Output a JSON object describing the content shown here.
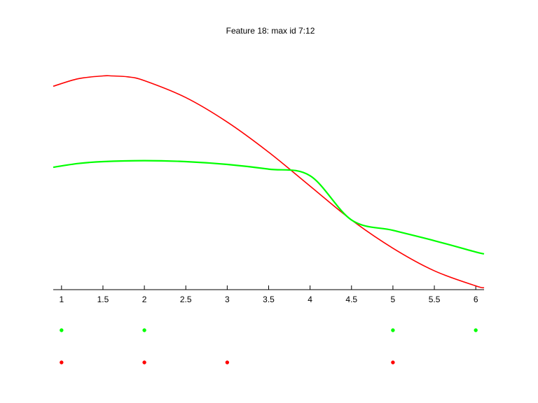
{
  "chart_data": {
    "type": "line",
    "title": "Feature 18: max id 7:12",
    "xlabel": "",
    "ylabel": "",
    "xlim": [
      0.9,
      6.1
    ],
    "x_ticks": [
      1,
      1.5,
      2,
      2.5,
      3,
      3.5,
      4,
      4.5,
      5,
      5.5,
      6
    ],
    "x_tick_labels": [
      "1",
      "1.5",
      "2",
      "2.5",
      "3",
      "3.5",
      "4",
      "4.5",
      "5",
      "5.5",
      "6"
    ],
    "y_axis_visible": false,
    "grid": false,
    "series": [
      {
        "color": "#ff0000",
        "x": [
          0.9,
          1.2,
          1.5,
          1.6,
          1.8,
          2.0,
          2.5,
          3.0,
          3.5,
          4.0,
          4.5,
          5.0,
          5.5,
          6.0,
          6.1
        ],
        "y": [
          0.88,
          0.92,
          0.935,
          0.935,
          0.93,
          0.91,
          0.82,
          0.69,
          0.53,
          0.35,
          0.17,
          0.02,
          -0.1,
          -0.18,
          -0.19
        ],
        "dots_x": [
          1,
          2,
          3,
          5
        ]
      },
      {
        "color": "#00ff00",
        "x": [
          0.9,
          1.2,
          1.5,
          2.0,
          2.5,
          3.0,
          3.5,
          4.0,
          4.5,
          5.0,
          5.5,
          6.0,
          6.1
        ],
        "y": [
          0.45,
          0.47,
          0.48,
          0.485,
          0.48,
          0.465,
          0.44,
          0.405,
          0.17,
          0.115,
          0.06,
          0.0,
          -0.01
        ],
        "dots_x": [
          1,
          2,
          5,
          6
        ]
      }
    ]
  }
}
